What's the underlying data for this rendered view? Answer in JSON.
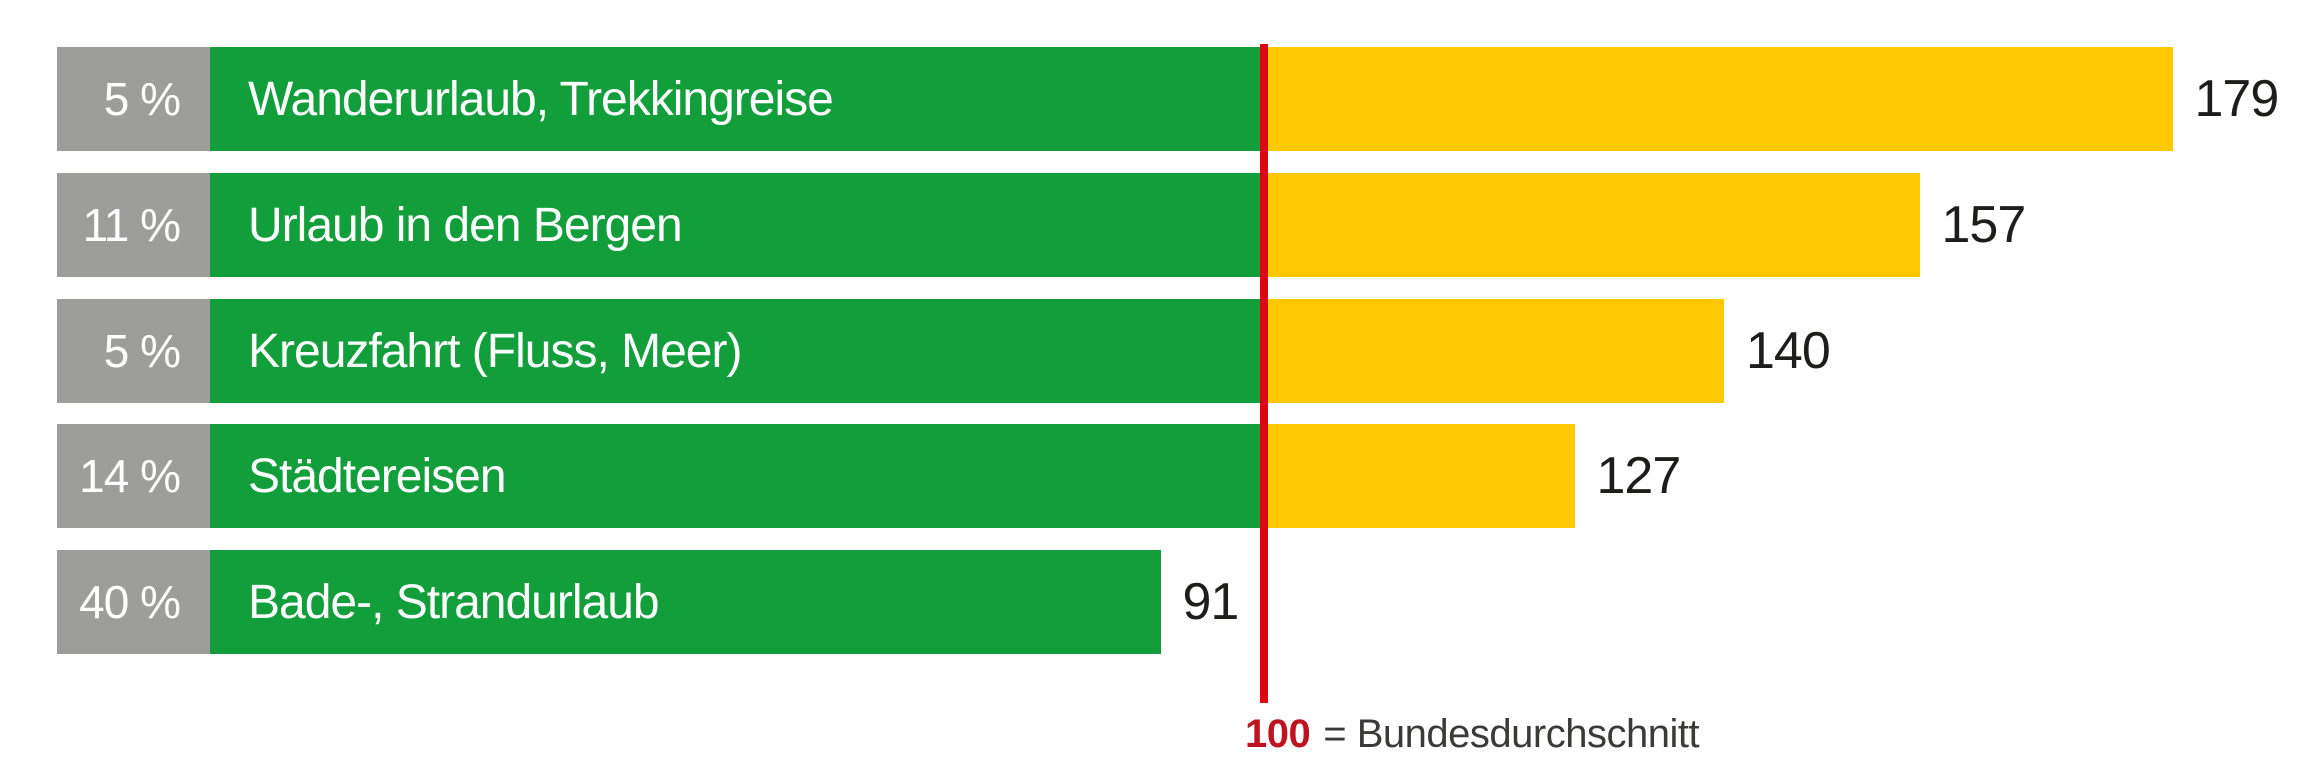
{
  "chart_data": {
    "type": "bar",
    "orientation": "horizontal",
    "title": "",
    "rows": [
      {
        "share_percent": "5 %",
        "category": "Wanderurlaub, Trekkingreise",
        "index_value": 179
      },
      {
        "share_percent": "11 %",
        "category": "Urlaub in den Bergen",
        "index_value": 157
      },
      {
        "share_percent": "5 %",
        "category": "Kreuzfahrt (Fluss, Meer)",
        "index_value": 140
      },
      {
        "share_percent": "14 %",
        "category": "Städtereisen",
        "index_value": 127
      },
      {
        "share_percent": "40 %",
        "category": "Bade-, Strandurlaub",
        "index_value": 91
      }
    ],
    "reference_line": {
      "value": 100,
      "label_value": "100",
      "label_text": "= Bundesdurchschnitt"
    },
    "value_axis": {
      "baseline": 100,
      "min_shown": 0,
      "max_shown": 179
    },
    "legend_position": "bottom-center",
    "grid": false,
    "colors": {
      "green_bar": "#119E3B",
      "yellow_bar": "#FFC800",
      "gray_percent_box": "#9D9D9C",
      "reference_line_red": "#DC0712",
      "reference_value_red": "#BE1421",
      "value_text": "#1D1D1B"
    }
  }
}
